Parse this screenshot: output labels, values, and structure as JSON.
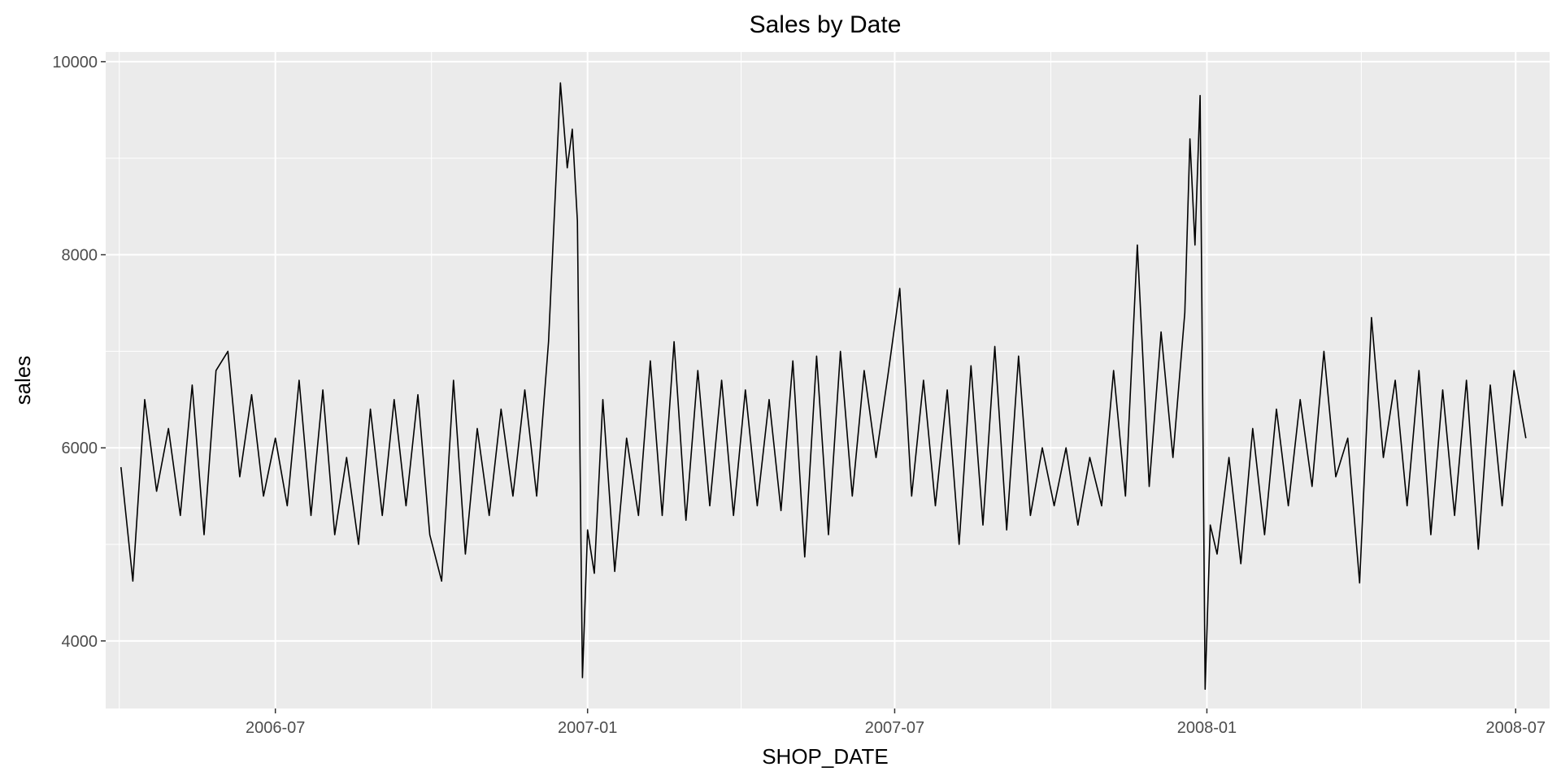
{
  "chart_data": {
    "type": "line",
    "title": "Sales by Date",
    "xlabel": "SHOP_DATE",
    "ylabel": "sales",
    "xlim": [
      "2006-03-23",
      "2008-07-21"
    ],
    "ylim": [
      3300,
      10100
    ],
    "x_ticks": [
      "2006-07-01",
      "2007-01-01",
      "2007-07-01",
      "2008-01-01",
      "2008-07-01"
    ],
    "x_tick_labels": [
      "2006-07",
      "2007-01",
      "2007-07",
      "2008-01",
      "2008-07"
    ],
    "y_ticks": [
      4000,
      6000,
      8000,
      10000
    ],
    "y_tick_labels": [
      "4000",
      "6000",
      "8000",
      "10000"
    ],
    "grid": true,
    "background": "#ebebeb",
    "grid_color": "#ffffff",
    "line_color": "#000000",
    "series": [
      {
        "x": [
          "2006-04-01",
          "2006-04-08",
          "2006-04-15",
          "2006-04-22",
          "2006-04-29",
          "2006-05-06",
          "2006-05-13",
          "2006-05-20",
          "2006-05-27",
          "2006-06-03",
          "2006-06-10",
          "2006-06-17",
          "2006-06-24",
          "2006-07-01",
          "2006-07-08",
          "2006-07-15",
          "2006-07-22",
          "2006-07-29",
          "2006-08-05",
          "2006-08-12",
          "2006-08-19",
          "2006-08-26",
          "2006-09-02",
          "2006-09-09",
          "2006-09-16",
          "2006-09-23",
          "2006-09-30",
          "2006-10-07",
          "2006-10-14",
          "2006-10-21",
          "2006-10-28",
          "2006-11-04",
          "2006-11-11",
          "2006-11-18",
          "2006-11-25",
          "2006-12-02",
          "2006-12-09",
          "2006-12-16",
          "2006-12-20",
          "2006-12-23",
          "2006-12-26",
          "2006-12-29",
          "2007-01-01",
          "2007-01-05",
          "2007-01-10",
          "2007-01-17",
          "2007-01-24",
          "2007-01-31",
          "2007-02-07",
          "2007-02-14",
          "2007-02-21",
          "2007-02-28",
          "2007-03-07",
          "2007-03-14",
          "2007-03-21",
          "2007-03-28",
          "2007-04-04",
          "2007-04-11",
          "2007-04-18",
          "2007-04-25",
          "2007-05-02",
          "2007-05-09",
          "2007-05-16",
          "2007-05-23",
          "2007-05-30",
          "2007-06-06",
          "2007-06-13",
          "2007-06-20",
          "2007-06-27",
          "2007-07-04",
          "2007-07-11",
          "2007-07-18",
          "2007-07-25",
          "2007-08-01",
          "2007-08-08",
          "2007-08-15",
          "2007-08-22",
          "2007-08-29",
          "2007-09-05",
          "2007-09-12",
          "2007-09-19",
          "2007-09-26",
          "2007-10-03",
          "2007-10-10",
          "2007-10-17",
          "2007-10-24",
          "2007-10-31",
          "2007-11-07",
          "2007-11-14",
          "2007-11-21",
          "2007-11-28",
          "2007-12-05",
          "2007-12-12",
          "2007-12-19",
          "2007-12-22",
          "2007-12-25",
          "2007-12-28",
          "2007-12-31",
          "2008-01-03",
          "2008-01-07",
          "2008-01-14",
          "2008-01-21",
          "2008-01-28",
          "2008-02-04",
          "2008-02-11",
          "2008-02-18",
          "2008-02-25",
          "2008-03-03",
          "2008-03-10",
          "2008-03-17",
          "2008-03-24",
          "2008-03-31",
          "2008-04-07",
          "2008-04-14",
          "2008-04-21",
          "2008-04-28",
          "2008-05-05",
          "2008-05-12",
          "2008-05-19",
          "2008-05-26",
          "2008-06-02",
          "2008-06-09",
          "2008-06-16",
          "2008-06-23",
          "2008-06-30",
          "2008-07-07"
        ],
        "y": [
          5800,
          4620,
          6500,
          5550,
          6200,
          5300,
          6650,
          5100,
          6800,
          7000,
          5700,
          6550,
          5500,
          6100,
          5400,
          6700,
          5300,
          6600,
          5100,
          5900,
          5000,
          6400,
          5300,
          6500,
          5400,
          6550,
          5100,
          4620,
          6700,
          4900,
          6200,
          5300,
          6400,
          5500,
          6600,
          5500,
          7100,
          9780,
          8900,
          9300,
          8350,
          3620,
          5150,
          4700,
          6500,
          4720,
          6100,
          5300,
          6900,
          5300,
          7100,
          5250,
          6800,
          5400,
          6700,
          5300,
          6600,
          5400,
          6500,
          5350,
          6900,
          4870,
          6950,
          5100,
          7000,
          5500,
          6800,
          5900,
          6750,
          7650,
          5500,
          6700,
          5400,
          6600,
          5000,
          6850,
          5200,
          7050,
          5150,
          6950,
          5300,
          6000,
          5400,
          6000,
          5200,
          5900,
          5400,
          6800,
          5500,
          8100,
          5600,
          7200,
          5900,
          7400,
          9200,
          8100,
          9650,
          3500,
          5200,
          4900,
          5900,
          4800,
          6200,
          5100,
          6400,
          5400,
          6500,
          5600,
          7000,
          5700,
          6100,
          4600,
          7350,
          5900,
          6700,
          5400,
          6800,
          5100,
          6600,
          5300,
          6700,
          4950,
          6650,
          5400,
          6800,
          6100
        ]
      }
    ]
  }
}
